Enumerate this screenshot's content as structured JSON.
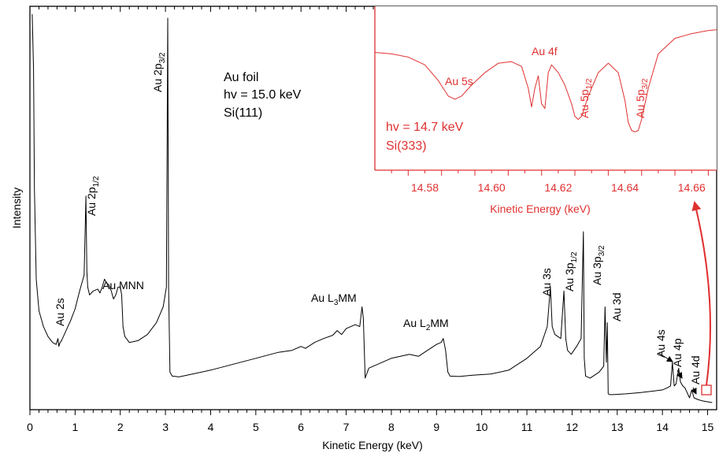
{
  "chart_data": [
    {
      "type": "line",
      "title": "",
      "xlabel": "Kinetic Energy (keV)",
      "ylabel": "Intensity",
      "xlim": [
        0,
        15.2
      ],
      "ylim": [
        0,
        1
      ],
      "x_ticks": [
        "0",
        "1",
        "2",
        "3",
        "4",
        "5",
        "6",
        "7",
        "8",
        "9",
        "10",
        "11",
        "12",
        "13",
        "14",
        "15"
      ],
      "sample_info": [
        "Au foil",
        "hv = 15.0 keV",
        "Si(111)"
      ],
      "color": "#000000",
      "series": [
        {
          "x": [
            0.05,
            0.08,
            0.1,
            0.14,
            0.2,
            0.3,
            0.4,
            0.5,
            0.58,
            0.62,
            0.64,
            0.66,
            0.7,
            0.8,
            0.9,
            1.0,
            1.1,
            1.2,
            1.24,
            1.26,
            1.28,
            1.32,
            1.4,
            1.5,
            1.55,
            1.6,
            1.65,
            1.7,
            1.75,
            1.8,
            1.85,
            1.9,
            1.95,
            2.0,
            2.03,
            2.06,
            2.1,
            2.2,
            2.4,
            2.6,
            2.8,
            2.95,
            3.02,
            3.05,
            3.07,
            3.1,
            3.15,
            3.3,
            3.6,
            4.0,
            4.5,
            5.0,
            5.5,
            5.8,
            6.0,
            6.1,
            6.3,
            6.5,
            6.7,
            6.8,
            6.9,
            7.0,
            7.1,
            7.2,
            7.3,
            7.35,
            7.38,
            7.42,
            7.5,
            7.8,
            8.0,
            8.2,
            8.4,
            8.6,
            8.8,
            9.0,
            9.1,
            9.15,
            9.2,
            9.25,
            9.3,
            9.5,
            9.8,
            10.2,
            10.6,
            11.0,
            11.3,
            11.45,
            11.52,
            11.56,
            11.62,
            11.75,
            11.82,
            11.86,
            11.9,
            11.98,
            12.1,
            12.2,
            12.25,
            12.27,
            12.3,
            12.4,
            12.6,
            12.7,
            12.73,
            12.76,
            12.78,
            12.8,
            12.84,
            12.9,
            13.2,
            13.5,
            13.8,
            14.0,
            14.1,
            14.18,
            14.22,
            14.26,
            14.3,
            14.36,
            14.4,
            14.45,
            14.5,
            14.6,
            14.65,
            14.7,
            14.8,
            14.9,
            15.0,
            15.1
          ],
          "y": [
            0.99,
            0.85,
            0.55,
            0.32,
            0.24,
            0.2,
            0.175,
            0.16,
            0.155,
            0.17,
            0.15,
            0.158,
            0.165,
            0.19,
            0.215,
            0.245,
            0.29,
            0.33,
            0.53,
            0.34,
            0.3,
            0.28,
            0.29,
            0.295,
            0.285,
            0.3,
            0.32,
            0.31,
            0.305,
            0.29,
            0.27,
            0.28,
            0.3,
            0.3,
            0.28,
            0.2,
            0.175,
            0.16,
            0.165,
            0.18,
            0.21,
            0.25,
            0.3,
            0.98,
            0.3,
            0.085,
            0.075,
            0.073,
            0.08,
            0.09,
            0.105,
            0.12,
            0.135,
            0.14,
            0.15,
            0.145,
            0.16,
            0.17,
            0.178,
            0.19,
            0.18,
            0.195,
            0.2,
            0.205,
            0.2,
            0.25,
            0.22,
            0.07,
            0.095,
            0.11,
            0.12,
            0.125,
            0.13,
            0.125,
            0.14,
            0.155,
            0.16,
            0.17,
            0.14,
            0.085,
            0.075,
            0.074,
            0.077,
            0.08,
            0.09,
            0.12,
            0.15,
            0.2,
            0.3,
            0.2,
            0.18,
            0.17,
            0.29,
            0.17,
            0.14,
            0.13,
            0.15,
            0.17,
            0.44,
            0.12,
            0.075,
            0.07,
            0.085,
            0.1,
            0.25,
            0.11,
            0.21,
            0.03,
            0.028,
            0.028,
            0.03,
            0.033,
            0.037,
            0.04,
            0.045,
            0.05,
            0.11,
            0.05,
            0.055,
            0.095,
            0.06,
            0.05,
            0.045,
            0.02,
            0.04,
            0.02,
            0.015,
            0.012,
            0.01,
            0.008
          ]
        }
      ],
      "annotations": [
        {
          "text": "Au 2s",
          "x": 0.64
        },
        {
          "text": "Au 2p",
          "sub": "1/2",
          "x": 1.26
        },
        {
          "text": "Au MNN",
          "x": 1.85
        },
        {
          "text": "Au 2p",
          "sub": "3/2",
          "x": 3.05
        },
        {
          "text": "Au L",
          "sub": "3",
          "suffix": "MM",
          "x": 7.0
        },
        {
          "text": "Au L",
          "sub": "2",
          "suffix": "MM",
          "x": 8.8
        },
        {
          "text": "Au 3s",
          "x": 11.52
        },
        {
          "text": "Au 3p",
          "sub": "1/2",
          "x": 11.86
        },
        {
          "text": "Au 3p",
          "sub": "3/2",
          "x": 12.25
        },
        {
          "text": "Au 3d",
          "x": 12.76
        },
        {
          "text": "Au 4s",
          "x": 14.22
        },
        {
          "text": "Au 4p",
          "x": 14.4
        },
        {
          "text": "Au 4d",
          "x": 14.65
        }
      ]
    },
    {
      "type": "line",
      "title": "",
      "xlabel": "Kinetic Energy (keV)",
      "ylabel": "",
      "xlim": [
        14.565,
        14.6675
      ],
      "ylim": [
        0,
        1
      ],
      "x_ticks": [
        "14.58",
        "14.60",
        "14.62",
        "14.64",
        "14.66"
      ],
      "sample_info": [
        "hv = 14.7 keV",
        "Si(333)"
      ],
      "color": "#e03030",
      "series": [
        {
          "x": [
            14.565,
            14.57,
            14.575,
            14.58,
            14.584,
            14.587,
            14.589,
            14.591,
            14.594,
            14.598,
            14.602,
            14.606,
            14.609,
            14.611,
            14.612,
            14.613,
            14.614,
            14.615,
            14.616,
            14.617,
            14.618,
            14.62,
            14.622,
            14.624,
            14.625,
            14.626,
            14.627,
            14.629,
            14.632,
            14.635,
            14.638,
            14.64,
            14.641,
            14.642,
            14.643,
            14.644,
            14.645,
            14.647,
            14.65,
            14.655,
            14.66,
            14.665,
            14.6675
          ],
          "y": [
            0.73,
            0.72,
            0.7,
            0.65,
            0.55,
            0.45,
            0.43,
            0.45,
            0.52,
            0.6,
            0.66,
            0.67,
            0.64,
            0.5,
            0.38,
            0.5,
            0.58,
            0.4,
            0.37,
            0.6,
            0.65,
            0.6,
            0.52,
            0.4,
            0.32,
            0.3,
            0.32,
            0.45,
            0.6,
            0.66,
            0.6,
            0.42,
            0.28,
            0.23,
            0.22,
            0.23,
            0.3,
            0.5,
            0.72,
            0.82,
            0.85,
            0.87,
            0.875
          ]
        }
      ],
      "annotations": [
        {
          "text": "Au 5s",
          "x": 14.589
        },
        {
          "text": "Au 4f",
          "x": 14.6145
        },
        {
          "text": "Au 5p",
          "sub": "1/2",
          "x": 14.626
        },
        {
          "text": "Au 5p",
          "sub": "3/2",
          "x": 14.643
        }
      ]
    }
  ],
  "main_ylabel": "Intensity",
  "main_xlabel": "Kinetic Energy (keV)",
  "inset_xlabel": "Kinetic Energy (keV)",
  "main_info": [
    "Au foil",
    "hv = 15.0 keV",
    "Si(111)"
  ],
  "inset_info": [
    "hv = 14.7 keV",
    "Si(333)"
  ],
  "colors": {
    "main": "#000000",
    "inset": "#e03030"
  }
}
